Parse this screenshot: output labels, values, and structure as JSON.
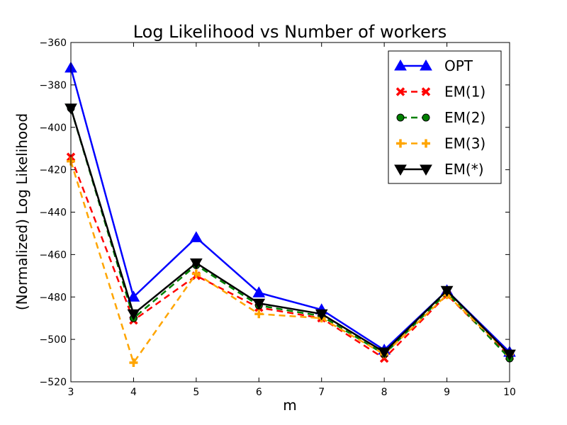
{
  "chart_data": {
    "type": "line",
    "title": "Log Likelihood vs Number of workers",
    "xlabel": "m",
    "ylabel": "(Normalized) Log Likelihood",
    "x": [
      3,
      4,
      5,
      6,
      7,
      8,
      9,
      10
    ],
    "xlim": [
      3,
      10
    ],
    "ylim": [
      -520,
      -360
    ],
    "xticks": [
      3,
      4,
      5,
      6,
      7,
      8,
      9,
      10
    ],
    "yticks": [
      -360,
      -380,
      -400,
      -420,
      -440,
      -460,
      -480,
      -500,
      -520
    ],
    "grid": false,
    "legend_position": "top-right",
    "series": [
      {
        "name": "OPT",
        "values": [
          -372,
          -480,
          -452,
          -478,
          -486,
          -505,
          -477,
          -506
        ],
        "color": "#0000ff",
        "linestyle": "solid",
        "marker": "triangle-up"
      },
      {
        "name": "EM(1)",
        "values": [
          -414,
          -491,
          -470,
          -485,
          -490,
          -509,
          -479,
          -508
        ],
        "color": "#ff0000",
        "linestyle": "dashed",
        "marker": "x"
      },
      {
        "name": "EM(2)",
        "values": [
          -391,
          -490,
          -465,
          -484,
          -489,
          -507,
          -478,
          -509
        ],
        "color": "#008000",
        "linestyle": "dashed",
        "marker": "circle"
      },
      {
        "name": "EM(3)",
        "values": [
          -416,
          -511,
          -469,
          -488,
          -490,
          -507,
          -479,
          -507
        ],
        "color": "#ffa500",
        "linestyle": "dashed",
        "marker": "plus"
      },
      {
        "name": "EM(*)",
        "values": [
          -391,
          -488,
          -464,
          -483,
          -488,
          -506,
          -477,
          -507
        ],
        "color": "#000000",
        "linestyle": "solid",
        "marker": "triangle-down"
      }
    ]
  }
}
